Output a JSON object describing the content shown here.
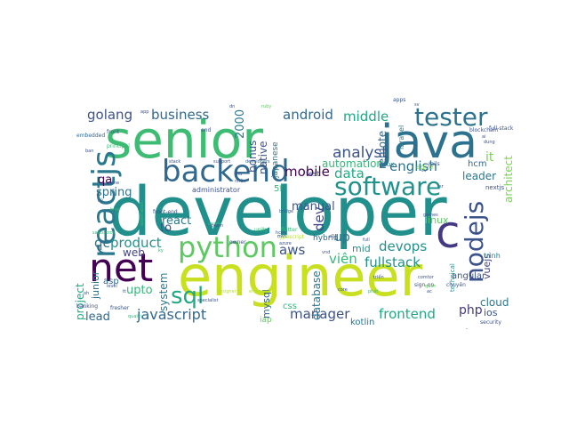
{
  "words": [
    {
      "text": "developer",
      "color": "#21908d"
    },
    {
      "text": "engineer",
      "color": "#c8e020"
    },
    {
      "text": "senior",
      "color": "#3fbc73"
    },
    {
      "text": "java",
      "color": "#2c728e"
    },
    {
      "text": "net",
      "color": "#440154"
    },
    {
      "text": "backend",
      "color": "#31688e"
    },
    {
      "text": "python",
      "color": "#5ec962"
    },
    {
      "text": "reactjs",
      "color": "#2a788e"
    },
    {
      "text": "software",
      "color": "#21918c"
    },
    {
      "text": "tester",
      "color": "#2c728e"
    },
    {
      "text": "nodejs",
      "color": "#3b528b"
    },
    {
      "text": "c",
      "color": "#443983"
    },
    {
      "text": "sql",
      "color": "#22a884"
    },
    {
      "text": "golang",
      "color": "#3b528b"
    },
    {
      "text": "business",
      "color": "#31688e"
    },
    {
      "text": "android",
      "color": "#31688e"
    },
    {
      "text": "middle",
      "color": "#22a884"
    },
    {
      "text": "analyst",
      "color": "#3b528b"
    },
    {
      "text": "english",
      "color": "#2c728e"
    },
    {
      "text": "data",
      "color": "#22a884"
    },
    {
      "text": "automation",
      "color": "#35b779"
    },
    {
      "text": "mobile",
      "color": "#440154"
    },
    {
      "text": "dev",
      "color": "#414487"
    },
    {
      "text": "devops",
      "color": "#21918c"
    },
    {
      "text": "fullstack",
      "color": "#21918c"
    },
    {
      "text": "viên",
      "color": "#35b779"
    },
    {
      "text": "product",
      "color": "#21918c"
    },
    {
      "text": "qc",
      "color": "#2c728e"
    },
    {
      "text": "aws",
      "color": "#3b528b"
    },
    {
      "text": "javascript",
      "color": "#31688e"
    },
    {
      "text": "manager",
      "color": "#3b528b"
    },
    {
      "text": "frontend",
      "color": "#22a884"
    },
    {
      "text": "php",
      "color": "#443983"
    },
    {
      "text": "lead",
      "color": "#31688e"
    },
    {
      "text": "spring",
      "color": "#2c728e"
    },
    {
      "text": "web",
      "color": "#414487"
    },
    {
      "text": "qa",
      "color": "#440154"
    },
    {
      "text": "up",
      "color": "#2c728e"
    },
    {
      "text": "to",
      "color": "#3b528b"
    },
    {
      "text": "react",
      "color": "#2a788e"
    },
    {
      "text": "manual",
      "color": "#3b528b"
    },
    {
      "text": "it",
      "color": "#7ad151"
    },
    {
      "text": "cloud",
      "color": "#2a788e"
    },
    {
      "text": "ios",
      "color": "#3b528b"
    },
    {
      "text": "mysql",
      "color": "#31688e"
    },
    {
      "text": "upto",
      "color": "#35b779"
    },
    {
      "text": "system",
      "color": "#2a788e"
    },
    {
      "text": "database",
      "color": "#2a788e"
    },
    {
      "text": "leader",
      "color": "#2a788e"
    },
    {
      "text": "hcm",
      "color": "#31688e"
    },
    {
      "text": "architect",
      "color": "#7ad151"
    },
    {
      "text": "remote",
      "color": "#31688e"
    },
    {
      "text": "bonus",
      "color": "#3b528b"
    },
    {
      "text": "2000",
      "color": "#2a788e"
    },
    {
      "text": "native",
      "color": "#3b528b"
    },
    {
      "text": "japanese",
      "color": "#2a788e"
    },
    {
      "text": "project",
      "color": "#22a884"
    },
    {
      "text": "junior",
      "color": "#2c728e"
    },
    {
      "text": "asp",
      "color": "#31688e"
    },
    {
      "text": "vuejs",
      "color": "#414487"
    },
    {
      "text": "angular",
      "color": "#3b528b"
    },
    {
      "text": "linux",
      "color": "#5ec962"
    },
    {
      "text": "mid",
      "color": "#21918c"
    },
    {
      "text": "kotlin",
      "color": "#2c728e"
    },
    {
      "text": "css",
      "color": "#35b779"
    },
    {
      "text": "iap",
      "color": "#5ec962"
    },
    {
      "text": "laravel",
      "color": "#2a788e"
    },
    {
      "text": "agile",
      "color": "#7ad151"
    },
    {
      "text": "ui-ux",
      "color": "#2a788e"
    },
    {
      "text": "test",
      "color": "#414487"
    },
    {
      "text": "administrator",
      "color": "#3b528b"
    },
    {
      "text": "5f",
      "color": "#35b779"
    },
    {
      "text": "trình",
      "color": "#2a788e"
    },
    {
      "text": "nextjs",
      "color": "#3b528b"
    },
    {
      "text": "technical",
      "color": "#21918c"
    },
    {
      "text": "flutter",
      "color": "#35b779"
    },
    {
      "text": "typescript",
      "color": "#b5de2b"
    },
    {
      "text": "hybrid",
      "color": "#31688e"
    },
    {
      "text": "security",
      "color": "#3b528b"
    },
    {
      "text": "banking",
      "color": "#3b528b"
    },
    {
      "text": "fresher",
      "color": "#3b528b"
    },
    {
      "text": "embedded",
      "color": "#31688e"
    },
    {
      "text": "front",
      "color": "#3b528b"
    },
    {
      "text": "blockchain",
      "color": "#3b528b"
    },
    {
      "text": "full-stack",
      "color": "#3b528b"
    },
    {
      "text": "ruby",
      "color": "#5ec962"
    },
    {
      "text": "rails",
      "color": "#3b528b"
    },
    {
      "text": "apps",
      "color": "#3b528b"
    },
    {
      "text": "unity",
      "color": "#35b779"
    },
    {
      "text": "front-end",
      "color": "#3b528b"
    },
    {
      "text": "principal",
      "color": "#35b779"
    },
    {
      "text": "support",
      "color": "#3b528b"
    },
    {
      "text": "developers",
      "color": "#31688e"
    },
    {
      "text": "stack",
      "color": "#3b528b"
    },
    {
      "text": "application",
      "color": "#35b779"
    },
    {
      "text": "sign-on",
      "color": "#3b528b"
    },
    {
      "text": "chuyên",
      "color": "#3b528b"
    },
    {
      "text": "comtor",
      "color": "#3b528b"
    },
    {
      "text": "azure",
      "color": "#3b528b"
    },
    {
      "text": "owner",
      "color": "#3b528b"
    },
    {
      "text": "bridge",
      "color": "#3b528b"
    },
    {
      "text": "onsite",
      "color": "#35b779"
    },
    {
      "text": "quality",
      "color": "#35b779"
    },
    {
      "text": "specialist",
      "color": "#3b528b"
    },
    {
      "text": "designer",
      "color": "#b5de2b"
    },
    {
      "text": "engineers",
      "color": "#b5de2b"
    },
    {
      "text": "phát",
      "color": "#35b779"
    },
    {
      "text": "core",
      "color": "#3b528b"
    },
    {
      "text": "triển",
      "color": "#3b528b"
    },
    {
      "text": "quản",
      "color": "#5ec962"
    },
    {
      "text": "nhân",
      "color": "#3b528b"
    },
    {
      "text": "thu",
      "color": "#3b528b"
    },
    {
      "text": "full",
      "color": "#3b528b"
    },
    {
      "text": "level",
      "color": "#3b528b"
    },
    {
      "text": "end",
      "color": "#3b528b"
    },
    {
      "text": "hcmc",
      "color": "#3b528b"
    },
    {
      "text": "mvc",
      "color": "#3b528b"
    },
    {
      "text": "all",
      "color": "#3b528b"
    },
    {
      "text": "dn",
      "color": "#3b528b"
    },
    {
      "text": "app",
      "color": "#3b528b"
    },
    {
      "text": "ban",
      "color": "#3b528b"
    },
    {
      "text": "sv",
      "color": "#3b528b"
    },
    {
      "text": "dung",
      "color": "#3b528b"
    },
    {
      "text": "cv",
      "color": "#3b528b"
    },
    {
      "text": "for",
      "color": "#3b528b"
    },
    {
      "text": "ai",
      "color": "#3b528b"
    },
    {
      "text": "team",
      "color": "#3b528b"
    },
    {
      "text": "ky",
      "color": "#35b779"
    },
    {
      "text": "vnd",
      "color": "#3b528b"
    },
    {
      "text": "sr",
      "color": "#3b528b"
    },
    {
      "text": "tt",
      "color": "#3b528b"
    },
    {
      "text": "oh",
      "color": "#3b528b"
    },
    {
      "text": "ac",
      "color": "#3b528b"
    },
    {
      "text": "brse",
      "color": "#35b779"
    },
    {
      "text": "game",
      "color": "#3b528b"
    },
    {
      "text": "kỹ",
      "color": "#3b528b"
    },
    {
      "text": "salesforce",
      "color": "#35b779"
    },
    {
      "text": "games",
      "color": "#3b528b"
    }
  ]
}
